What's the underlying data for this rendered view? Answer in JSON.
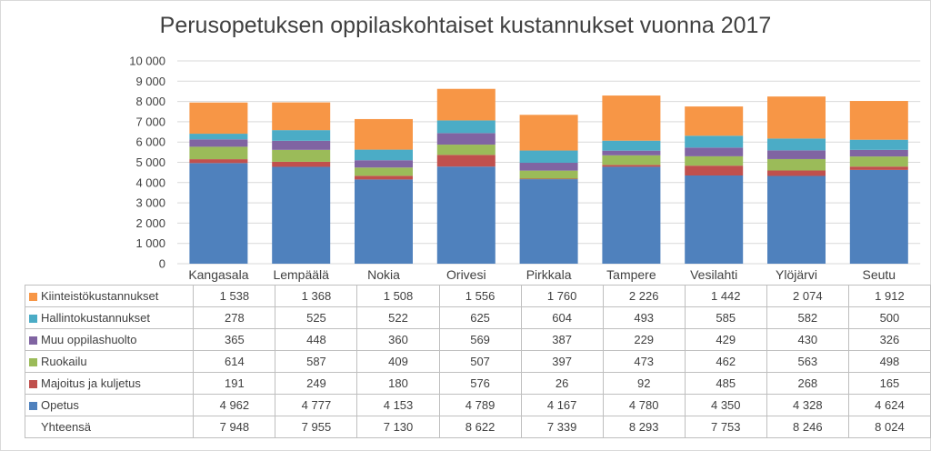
{
  "chart_data": {
    "type": "bar",
    "stacked": true,
    "title": "Perusopetuksen oppilaskohtaiset kustannukset vuonna 2017",
    "categories": [
      "Kangasala",
      "Lempäälä",
      "Nokia",
      "Orivesi",
      "Pirkkala",
      "Tampere",
      "Vesilahti",
      "Ylöjärvi",
      "Seutu"
    ],
    "ylim": [
      0,
      10000
    ],
    "yticks": [
      0,
      1000,
      2000,
      3000,
      4000,
      5000,
      6000,
      7000,
      8000,
      9000,
      10000
    ],
    "ytick_labels": [
      "0",
      "1 000",
      "2 000",
      "3 000",
      "4 000",
      "5 000",
      "6 000",
      "7 000",
      "8 000",
      "9 000",
      "10 000"
    ],
    "grid": true,
    "legend": "data-table",
    "series": [
      {
        "name": "Opetus",
        "color": "#4f81bd",
        "values": [
          4962,
          4777,
          4153,
          4789,
          4167,
          4780,
          4350,
          4328,
          4624
        ],
        "labels": [
          "4 962",
          "4 777",
          "4 153",
          "4 789",
          "4 167",
          "4 780",
          "4 350",
          "4 328",
          "4 624"
        ]
      },
      {
        "name": "Majoitus ja kuljetus",
        "color": "#c0504d",
        "values": [
          191,
          249,
          180,
          576,
          26,
          92,
          485,
          268,
          165
        ],
        "labels": [
          "191",
          "249",
          "180",
          "576",
          "26",
          "92",
          "485",
          "268",
          "165"
        ]
      },
      {
        "name": "Ruokailu",
        "color": "#9bbb59",
        "values": [
          614,
          587,
          409,
          507,
          397,
          473,
          462,
          563,
          498
        ],
        "labels": [
          "614",
          "587",
          "409",
          "507",
          "397",
          "473",
          "462",
          "563",
          "498"
        ]
      },
      {
        "name": "Muu oppilashuolto",
        "color": "#8064a2",
        "values": [
          365,
          448,
          360,
          569,
          387,
          229,
          429,
          430,
          326
        ],
        "labels": [
          "365",
          "448",
          "360",
          "569",
          "387",
          "229",
          "429",
          "430",
          "326"
        ]
      },
      {
        "name": "Hallintokustannukset",
        "color": "#4bacc6",
        "values": [
          278,
          525,
          522,
          625,
          604,
          493,
          585,
          582,
          500
        ],
        "labels": [
          "278",
          "525",
          "522",
          "625",
          "604",
          "493",
          "585",
          "582",
          "500"
        ]
      },
      {
        "name": "Kiinteistökustannukset",
        "color": "#f79646",
        "values": [
          1538,
          1368,
          1508,
          1556,
          1760,
          2226,
          1442,
          2074,
          1912
        ],
        "labels": [
          "1 538",
          "1 368",
          "1 508",
          "1 556",
          "1 760",
          "2 226",
          "1 442",
          "2 074",
          "1 912"
        ]
      }
    ],
    "totals": {
      "name": "Yhteensä",
      "values": [
        7948,
        7955,
        7130,
        8622,
        7339,
        8293,
        7753,
        8246,
        8024
      ],
      "labels": [
        "7 948",
        "7 955",
        "7 130",
        "8 622",
        "7 339",
        "8 293",
        "7 753",
        "8 246",
        "8 024"
      ]
    }
  }
}
